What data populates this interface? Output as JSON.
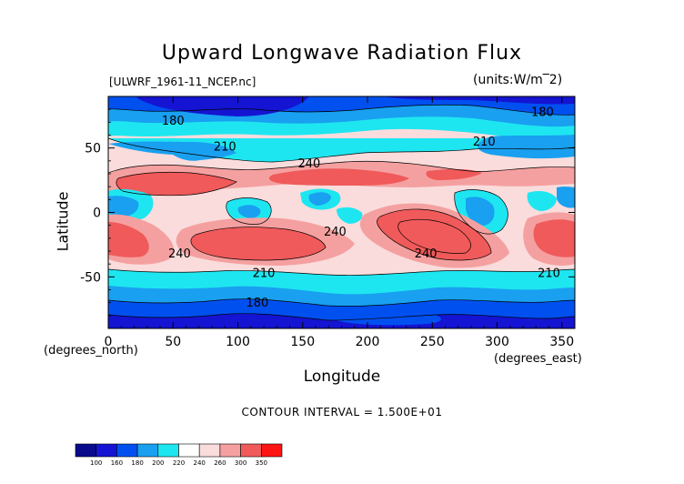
{
  "chart_data": {
    "type": "heatmap",
    "title": "Upward Longwave Radiation Flux",
    "source_label": "[ULWRF_1961-11_NCEP.nc]",
    "units_label": "(units:W/m^2)",
    "xlabel": "Longitude",
    "ylabel": "Latitude",
    "x_unit_label": "(degrees_east)",
    "y_unit_label": "(degrees_north)",
    "xlim": [
      0,
      360
    ],
    "ylim": [
      -90,
      90
    ],
    "x_ticks": [
      0,
      50,
      100,
      150,
      200,
      250,
      300,
      350
    ],
    "y_ticks": [
      -50,
      0,
      50
    ],
    "contour_interval_text": "CONTOUR INTERVAL = 1.500E+01",
    "contour_labels": [
      {
        "text": "180",
        "lon": 50,
        "lat": 68
      },
      {
        "text": "180",
        "lon": 335,
        "lat": 75
      },
      {
        "text": "210",
        "lon": 90,
        "lat": 48
      },
      {
        "text": "210",
        "lon": 290,
        "lat": 52
      },
      {
        "text": "240",
        "lon": 155,
        "lat": 35
      },
      {
        "text": "240",
        "lon": 55,
        "lat": -35
      },
      {
        "text": "240",
        "lon": 175,
        "lat": -18
      },
      {
        "text": "240",
        "lon": 245,
        "lat": -35
      },
      {
        "text": "210",
        "lon": 120,
        "lat": -50
      },
      {
        "text": "210",
        "lon": 340,
        "lat": -50
      },
      {
        "text": "180",
        "lon": 115,
        "lat": -73
      }
    ],
    "colorbar_levels": [
      100,
      160,
      180,
      200,
      220,
      240,
      260,
      300,
      350
    ],
    "colorbar_colors": [
      "#0a0a8c",
      "#1414d2",
      "#0050f0",
      "#19a0f0",
      "#1ee6f0",
      "#ffffff",
      "#fadcdc",
      "#f5a0a0",
      "#f05a5a",
      "#ff1414"
    ]
  }
}
